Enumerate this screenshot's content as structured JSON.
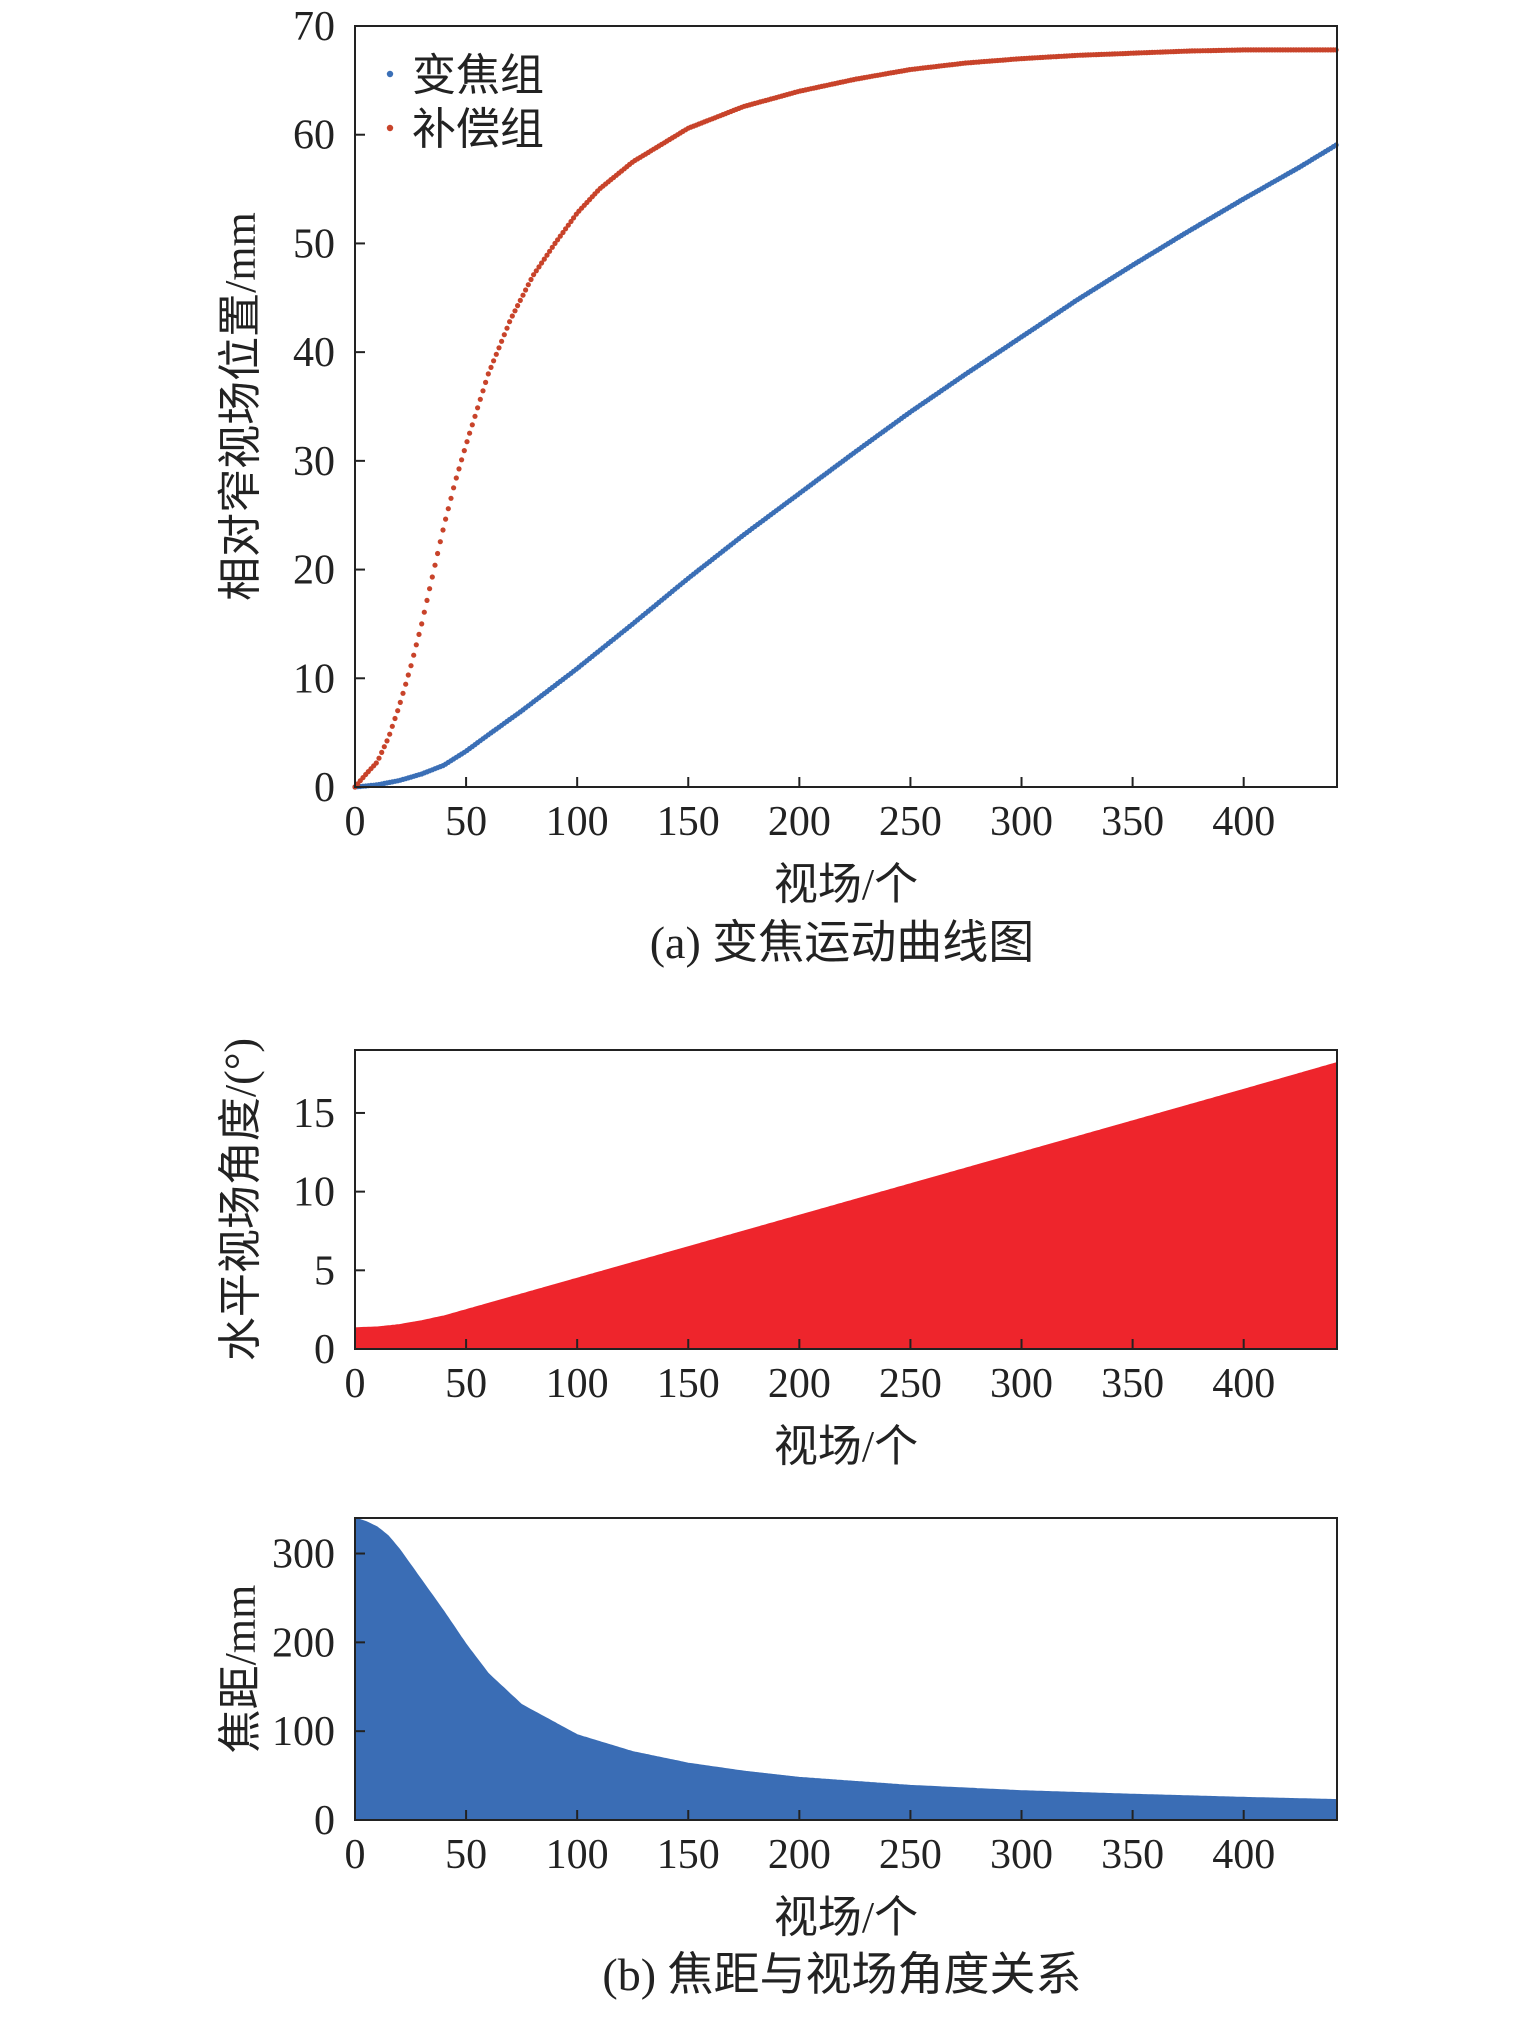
{
  "chart_data": [
    {
      "type": "scatter",
      "caption": "(a) 变焦运动曲线图",
      "xlabel": "视场/个",
      "ylabel": "相对窄视场位置/mm",
      "xlim": [
        0,
        442
      ],
      "ylim": [
        0,
        70
      ],
      "xticks": [
        0,
        50,
        100,
        150,
        200,
        250,
        300,
        350,
        400
      ],
      "yticks": [
        0,
        10,
        20,
        30,
        40,
        50,
        60,
        70
      ],
      "grid": false,
      "legend_position": "top-left",
      "series": [
        {
          "name": "变焦组",
          "color": "#3b6fb6",
          "x": [
            0,
            10,
            20,
            30,
            40,
            50,
            60,
            75,
            100,
            125,
            150,
            175,
            200,
            225,
            250,
            275,
            300,
            325,
            350,
            375,
            400,
            425,
            442
          ],
          "y": [
            0,
            0.2,
            0.6,
            1.2,
            2.0,
            3.3,
            4.8,
            7.0,
            10.9,
            15.0,
            19.2,
            23.2,
            27.0,
            30.8,
            34.5,
            38.0,
            41.4,
            44.8,
            48.0,
            51.1,
            54.1,
            57.0,
            59.1
          ]
        },
        {
          "name": "补偿组",
          "color": "#c8432a",
          "x": [
            0,
            5,
            10,
            15,
            20,
            25,
            30,
            35,
            40,
            45,
            50,
            60,
            70,
            80,
            90,
            100,
            110,
            125,
            150,
            175,
            200,
            225,
            250,
            275,
            300,
            325,
            350,
            375,
            400,
            425,
            442
          ],
          "y": [
            0,
            1.2,
            2.3,
            4.5,
            7.5,
            11.0,
            15.0,
            19.5,
            24.0,
            28.0,
            31.5,
            38.0,
            43.0,
            47.0,
            50.0,
            52.8,
            55.0,
            57.5,
            60.6,
            62.6,
            64.0,
            65.1,
            66.0,
            66.6,
            67.0,
            67.3,
            67.5,
            67.7,
            67.8,
            67.8,
            67.8
          ]
        }
      ]
    },
    {
      "type": "area",
      "xlabel": "视场/个",
      "ylabel": "水平视场角度/(°)",
      "xlim": [
        0,
        442
      ],
      "ylim": [
        0,
        19
      ],
      "xticks": [
        0,
        50,
        100,
        150,
        200,
        250,
        300,
        350,
        400
      ],
      "yticks": [
        0,
        5,
        10,
        15
      ],
      "grid": false,
      "color": "#ee252c",
      "x": [
        0,
        10,
        20,
        30,
        40,
        50,
        60,
        75,
        100,
        150,
        200,
        250,
        300,
        350,
        400,
        442
      ],
      "y": [
        1.35,
        1.4,
        1.55,
        1.8,
        2.1,
        2.5,
        2.9,
        3.5,
        4.5,
        6.5,
        8.5,
        10.5,
        12.5,
        14.5,
        16.5,
        18.2
      ]
    },
    {
      "type": "area",
      "caption": "(b) 焦距与视场角度关系",
      "xlabel": "视场/个",
      "ylabel": "焦距/mm",
      "xlim": [
        0,
        442
      ],
      "ylim": [
        0,
        340
      ],
      "xticks": [
        0,
        50,
        100,
        150,
        200,
        250,
        300,
        350,
        400
      ],
      "yticks": [
        0,
        100,
        200,
        300
      ],
      "grid": false,
      "color": "#3a6db5",
      "x": [
        0,
        5,
        10,
        15,
        20,
        30,
        40,
        50,
        60,
        75,
        100,
        125,
        150,
        175,
        200,
        250,
        300,
        350,
        400,
        442
      ],
      "y": [
        340,
        336,
        330,
        320,
        305,
        270,
        235,
        198,
        165,
        130,
        96,
        77,
        64,
        55,
        48,
        39,
        33,
        29,
        25.5,
        23
      ]
    }
  ]
}
